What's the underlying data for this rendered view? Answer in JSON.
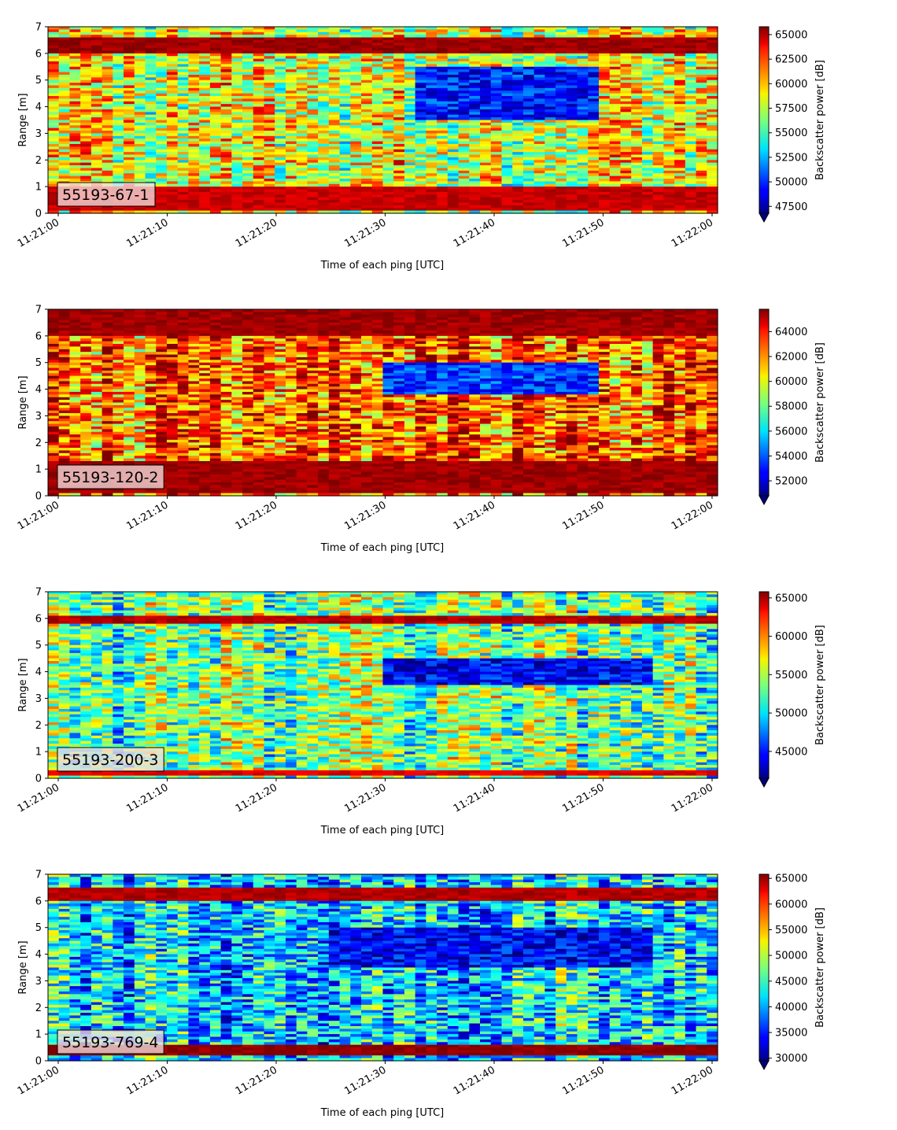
{
  "chart_data": [
    {
      "type": "heatmap",
      "label": "55193-67-1",
      "ylabel": "Range [m]",
      "xlabel": "Time of each ping [UTC]",
      "ylim": [
        0,
        7
      ],
      "yticks": [
        "0",
        "1",
        "2",
        "3",
        "4",
        "5",
        "6",
        "7"
      ],
      "xticks": [
        "11:21:00",
        "11:21:10",
        "11:21:20",
        "11:21:30",
        "11:21:40",
        "11:21:50",
        "11:22:00"
      ],
      "colorbar_label": "Backscatter power [dB]",
      "colorbar_ticks": [
        "47500",
        "50000",
        "52500",
        "55000",
        "57500",
        "60000",
        "62500",
        "65000"
      ],
      "clim": [
        46800,
        65800
      ],
      "colormap": "jet",
      "bands": [
        {
          "range_m": [
            6.0,
            6.6
          ],
          "level": 0.97
        },
        {
          "range_m": [
            0.15,
            1.0
          ],
          "level": 0.93
        }
      ],
      "low_region": {
        "time_s": [
          33,
          50
        ],
        "range_m": [
          3.5,
          5.5
        ],
        "level": 0.15
      },
      "background_level": 0.6
    },
    {
      "type": "heatmap",
      "label": "55193-120-2",
      "ylabel": "Range [m]",
      "xlabel": "Time of each ping [UTC]",
      "ylim": [
        0,
        7
      ],
      "yticks": [
        "0",
        "1",
        "2",
        "3",
        "4",
        "5",
        "6",
        "7"
      ],
      "xticks": [
        "11:21:00",
        "11:21:10",
        "11:21:20",
        "11:21:30",
        "11:21:40",
        "11:21:50",
        "11:22:00"
      ],
      "colorbar_label": "Backscatter power [dB]",
      "colorbar_ticks": [
        "52000",
        "54000",
        "56000",
        "58000",
        "60000",
        "62000",
        "64000"
      ],
      "clim": [
        50800,
        65800
      ],
      "colormap": "jet",
      "bands": [
        {
          "range_m": [
            6.0,
            7.0
          ],
          "level": 0.97
        },
        {
          "range_m": [
            0.15,
            1.3
          ],
          "level": 0.97
        }
      ],
      "low_region": {
        "time_s": [
          30,
          50
        ],
        "range_m": [
          3.8,
          5.0
        ],
        "level": 0.18
      },
      "background_level": 0.78
    },
    {
      "type": "heatmap",
      "label": "55193-200-3",
      "ylabel": "Range [m]",
      "xlabel": "Time of each ping [UTC]",
      "ylim": [
        0,
        7
      ],
      "yticks": [
        "0",
        "1",
        "2",
        "3",
        "4",
        "5",
        "6",
        "7"
      ],
      "xticks": [
        "11:21:00",
        "11:21:10",
        "11:21:20",
        "11:21:30",
        "11:21:40",
        "11:21:50",
        "11:22:00"
      ],
      "colorbar_label": "Backscatter power [dB]",
      "colorbar_ticks": [
        "45000",
        "50000",
        "55000",
        "60000",
        "65000"
      ],
      "clim": [
        41500,
        65800
      ],
      "colormap": "jet",
      "bands": [
        {
          "range_m": [
            5.8,
            6.1
          ],
          "level": 0.95
        },
        {
          "range_m": [
            0.05,
            0.3
          ],
          "level": 0.9
        }
      ],
      "low_region": {
        "time_s": [
          30,
          55
        ],
        "range_m": [
          3.5,
          4.5
        ],
        "level": 0.12
      },
      "background_level": 0.48
    },
    {
      "type": "heatmap",
      "label": "55193-769-4",
      "ylabel": "Range [m]",
      "xlabel": "Time of each ping [UTC]",
      "ylim": [
        0,
        7
      ],
      "yticks": [
        "0",
        "1",
        "2",
        "3",
        "4",
        "5",
        "6",
        "7"
      ],
      "xticks": [
        "11:21:00",
        "11:21:10",
        "11:21:20",
        "11:21:30",
        "11:21:40",
        "11:21:50",
        "11:22:00"
      ],
      "colorbar_label": "Backscatter power [dB]",
      "colorbar_ticks": [
        "30000",
        "35000",
        "40000",
        "45000",
        "50000",
        "55000",
        "60000",
        "65000"
      ],
      "clim": [
        29500,
        65800
      ],
      "colormap": "jet",
      "bands": [
        {
          "range_m": [
            6.0,
            6.5
          ],
          "level": 0.95
        },
        {
          "range_m": [
            0.25,
            0.6
          ],
          "level": 0.99
        }
      ],
      "low_region": {
        "time_s": [
          25,
          55
        ],
        "range_m": [
          3.5,
          5.0
        ],
        "level": 0.12
      },
      "background_level": 0.35
    }
  ]
}
